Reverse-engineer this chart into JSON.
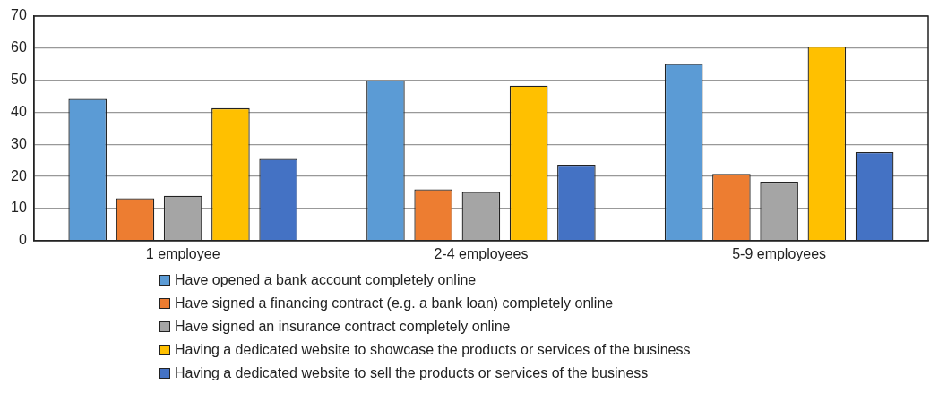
{
  "chart_data": {
    "type": "bar",
    "categories": [
      "1 employee",
      "2-4 employees",
      "5-9 employees"
    ],
    "series": [
      {
        "name": "Have opened a bank account completely online",
        "color": "#5b9bd5",
        "values": [
          44.2,
          50.0,
          55.1
        ]
      },
      {
        "name": "Have signed a financing contract (e.g. a bank loan) completely online",
        "color": "#ed7d31",
        "values": [
          13.2,
          16.0,
          20.8
        ]
      },
      {
        "name": "Have signed an insurance contract completely online",
        "color": "#a5a5a5",
        "values": [
          14.0,
          15.2,
          18.4
        ]
      },
      {
        "name": "Having a dedicated website to showcase the products or services of the business",
        "color": "#ffc000",
        "values": [
          41.3,
          48.3,
          60.5
        ]
      },
      {
        "name": "Having a dedicated website to sell the products or services of the business",
        "color": "#4472c4",
        "values": [
          25.5,
          23.7,
          27.6
        ]
      }
    ],
    "ylim": [
      0,
      70
    ],
    "yticks": [
      0,
      10,
      20,
      30,
      40,
      50,
      60,
      70
    ],
    "grid": "y",
    "legend": "bottom"
  }
}
